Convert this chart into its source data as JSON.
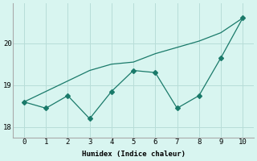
{
  "x": [
    0,
    1,
    2,
    3,
    4,
    5,
    6,
    7,
    8,
    9,
    10
  ],
  "line1_y": [
    18.6,
    18.45,
    18.75,
    18.2,
    18.85,
    19.35,
    19.3,
    18.45,
    18.75,
    19.65,
    20.6
  ],
  "line2_y": [
    18.6,
    18.85,
    19.1,
    19.35,
    19.5,
    19.55,
    19.75,
    19.9,
    20.05,
    20.25,
    20.6
  ],
  "line_color": "#1a7a6a",
  "bg_color": "#d8f5f0",
  "grid_color": "#b8ddd8",
  "xlabel": "Humidex (Indice chaleur)",
  "yticks": [
    18,
    19,
    20
  ],
  "ylim": [
    17.75,
    20.95
  ],
  "xlim": [
    -0.5,
    10.5
  ],
  "markersize": 3.0
}
